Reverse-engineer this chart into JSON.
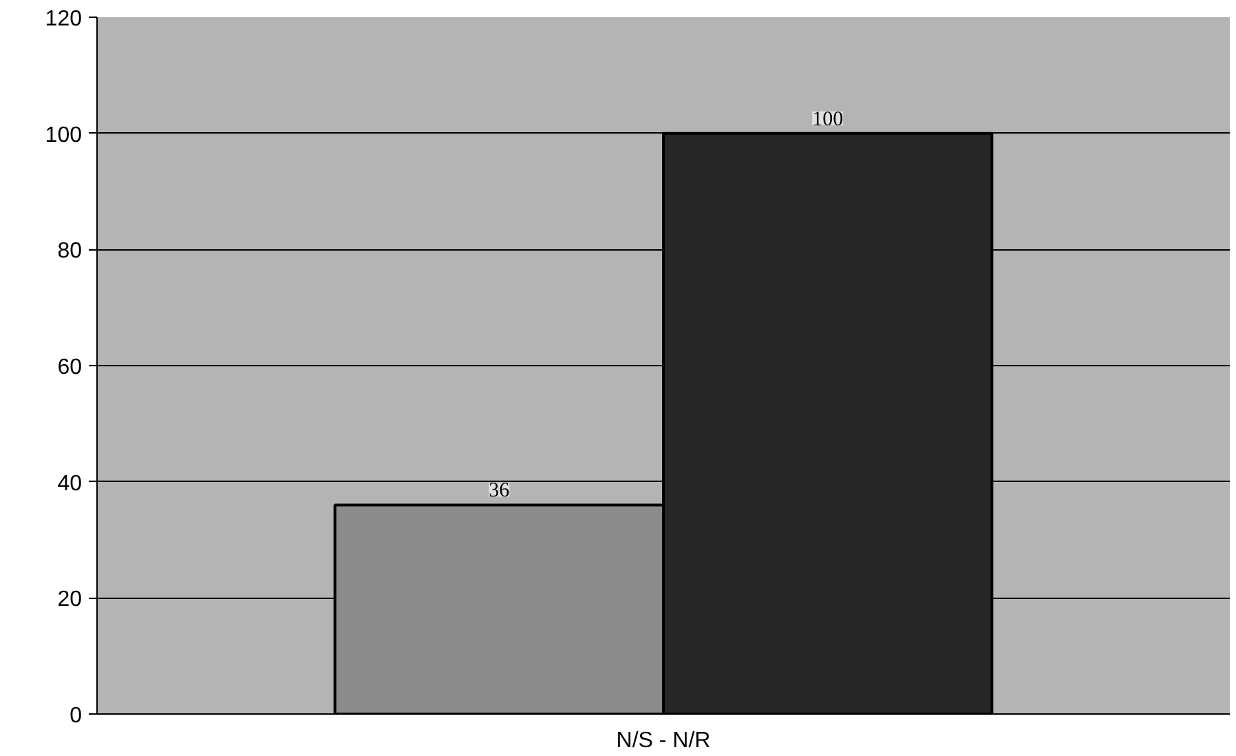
{
  "chart_data": {
    "type": "bar",
    "categories": [
      "N/S - N/R"
    ],
    "series": [
      {
        "color": "#8c8c8c",
        "values": [
          36
        ]
      },
      {
        "color": "#262626",
        "values": [
          100
        ]
      }
    ],
    "ylim": [
      0,
      120
    ],
    "yticks": [
      0,
      20,
      40,
      60,
      80,
      100,
      120
    ],
    "grid": "y",
    "data_labels": true
  }
}
